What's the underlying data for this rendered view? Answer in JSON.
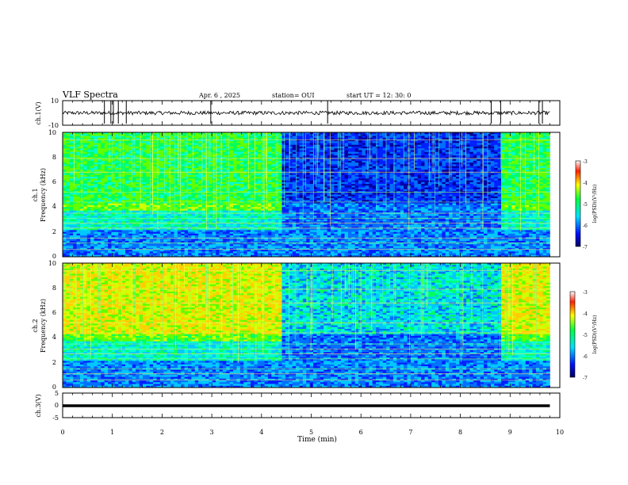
{
  "header": {
    "title": "VLF Spectra",
    "date": "Apr. 6 , 2025",
    "station": "station= OUI",
    "start": "start  UT  =   12: 30: 0"
  },
  "chart_data": [
    {
      "type": "line",
      "name": "ch1-waveform",
      "ylabel": "ch.1(V)",
      "ylim": [
        -10,
        10
      ],
      "yticks": [
        "10",
        "-10"
      ],
      "x": [
        0,
        10
      ],
      "baseline": 0,
      "spikes_min": [
        0.84,
        0.97,
        1.02,
        1.12,
        1.28,
        2.98,
        5.33,
        8.62,
        8.81,
        9.58,
        9.65
      ]
    },
    {
      "type": "heatmap",
      "name": "ch1-spectrogram",
      "ylabel_top": "ch.1",
      "ylabel": "Frequency (kHz)",
      "ylim": [
        0,
        10
      ],
      "yticks": [
        "0",
        "2",
        "4",
        "6",
        "8",
        "10"
      ],
      "quiet_interval_min": [
        4.4,
        8.8
      ],
      "colorbar": {
        "label": "log(PSD)(V²/Hz)",
        "range": [
          -7,
          -3
        ],
        "ticks": [
          "-3",
          "-4",
          "-5",
          "-6",
          "-7"
        ]
      }
    },
    {
      "type": "heatmap",
      "name": "ch2-spectrogram",
      "ylabel_top": "ch.2",
      "ylabel": "Frequency (kHz)",
      "ylim": [
        0,
        10
      ],
      "yticks": [
        "0",
        "2",
        "4",
        "6",
        "8",
        "10"
      ],
      "quiet_interval_min": [
        4.4,
        8.8
      ],
      "colorbar": {
        "label": "log(PSD)(V²/Hz)",
        "range": [
          -7,
          -3
        ],
        "ticks": [
          "-3",
          "-4",
          "-5",
          "-6",
          "-7"
        ]
      }
    },
    {
      "type": "line",
      "name": "ch3-waveform",
      "ylabel": "ch.3(V)",
      "ylim": [
        -5,
        5
      ],
      "yticks": [
        "5",
        "0",
        "-5"
      ],
      "constant_value": -0.5
    }
  ],
  "xaxis": {
    "label": "Time (min)",
    "range": [
      0,
      10
    ],
    "ticks": [
      "0",
      "1",
      "2",
      "3",
      "4",
      "5",
      "6",
      "7",
      "8",
      "9",
      "10"
    ]
  }
}
